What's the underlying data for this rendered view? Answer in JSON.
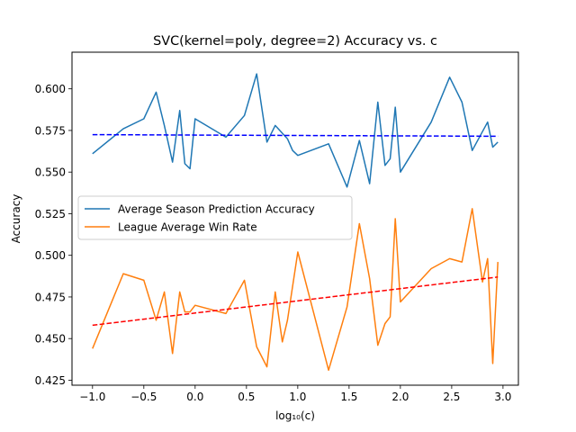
{
  "chart_data": {
    "type": "line",
    "title": "SVC(kernel=poly, degree=2) Accuracy vs. c",
    "xlabel": "log₁₀(c)",
    "ylabel": "Accuracy",
    "xlim": [
      -1.2,
      3.15
    ],
    "ylim": [
      0.422,
      0.622
    ],
    "xticks": [
      -1.0,
      -0.5,
      0.0,
      0.5,
      1.0,
      1.5,
      2.0,
      2.5,
      3.0
    ],
    "xtick_labels": [
      "−1.0",
      "−0.5",
      "0.0",
      "0.5",
      "1.0",
      "1.5",
      "2.0",
      "2.5",
      "3.0"
    ],
    "yticks": [
      0.425,
      0.45,
      0.475,
      0.5,
      0.525,
      0.55,
      0.575,
      0.6
    ],
    "ytick_labels": [
      "0.425",
      "0.450",
      "0.475",
      "0.500",
      "0.525",
      "0.550",
      "0.575",
      "0.600"
    ],
    "grid": false,
    "legend_position": "center-left",
    "series": [
      {
        "name": "Average Season Prediction Accuracy",
        "color": "#1f77b4",
        "style": "solid",
        "x": [
          -1.0,
          -0.7,
          -0.5,
          -0.38,
          -0.3,
          -0.22,
          -0.15,
          -0.1,
          -0.05,
          0.0,
          0.3,
          0.48,
          0.6,
          0.7,
          0.78,
          0.9,
          0.95,
          1.0,
          1.3,
          1.48,
          1.6,
          1.7,
          1.78,
          1.85,
          1.9,
          1.95,
          2.0,
          2.3,
          2.48,
          2.6,
          2.7,
          2.85,
          2.9,
          2.95
        ],
        "y": [
          0.561,
          0.576,
          0.582,
          0.598,
          0.578,
          0.556,
          0.587,
          0.555,
          0.552,
          0.582,
          0.571,
          0.584,
          0.609,
          0.568,
          0.578,
          0.57,
          0.563,
          0.56,
          0.567,
          0.541,
          0.569,
          0.543,
          0.592,
          0.554,
          0.558,
          0.589,
          0.55,
          0.58,
          0.607,
          0.592,
          0.563,
          0.58,
          0.565,
          0.568
        ]
      },
      {
        "name": "League Average Win Rate",
        "color": "#ff7f0e",
        "style": "solid",
        "x": [
          -1.0,
          -0.7,
          -0.5,
          -0.38,
          -0.3,
          -0.22,
          -0.15,
          -0.1,
          -0.05,
          0.0,
          0.3,
          0.48,
          0.6,
          0.7,
          0.78,
          0.85,
          0.9,
          1.0,
          1.3,
          1.48,
          1.6,
          1.7,
          1.78,
          1.85,
          1.9,
          1.95,
          2.0,
          2.3,
          2.48,
          2.6,
          2.7,
          2.8,
          2.85,
          2.9,
          2.95
        ],
        "y": [
          0.444,
          0.489,
          0.485,
          0.461,
          0.478,
          0.441,
          0.478,
          0.466,
          0.466,
          0.47,
          0.465,
          0.485,
          0.445,
          0.433,
          0.478,
          0.448,
          0.461,
          0.502,
          0.431,
          0.469,
          0.519,
          0.486,
          0.446,
          0.459,
          0.463,
          0.522,
          0.472,
          0.492,
          0.498,
          0.496,
          0.528,
          0.484,
          0.498,
          0.435,
          0.496
        ]
      },
      {
        "color": "#0000ff",
        "style": "dashed",
        "x": [
          -1.0,
          2.95
        ],
        "y": [
          0.5725,
          0.5715
        ]
      },
      {
        "color": "#ff0000",
        "style": "dashed",
        "x": [
          -1.0,
          2.95
        ],
        "y": [
          0.458,
          0.487
        ]
      }
    ]
  }
}
